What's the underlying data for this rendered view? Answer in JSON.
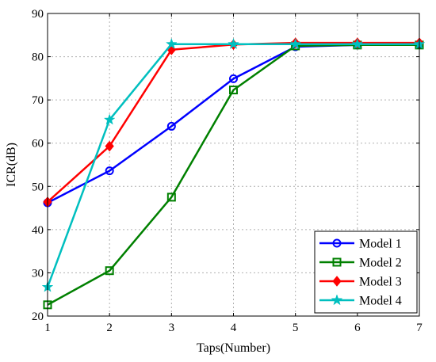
{
  "chart_data": {
    "type": "line",
    "xlabel": "Taps(Number)",
    "ylabel": "ICR(dB)",
    "x": [
      1,
      2,
      3,
      4,
      5,
      6,
      7
    ],
    "xlim": [
      1,
      7
    ],
    "ylim": [
      20,
      90
    ],
    "xticks": [
      "1",
      "2",
      "3",
      "4",
      "5",
      "6",
      "7"
    ],
    "yticks": [
      "20",
      "30",
      "40",
      "50",
      "60",
      "70",
      "80",
      "90"
    ],
    "grid": true,
    "legend_position": "bottom-right",
    "series": [
      {
        "name": "Model 1",
        "color": "#0000ff",
        "marker": "circle",
        "values": [
          46.2,
          53.6,
          63.9,
          74.9,
          82.3,
          82.7,
          82.8
        ]
      },
      {
        "name": "Model 2",
        "color": "#008000",
        "marker": "square",
        "values": [
          22.6,
          30.5,
          47.5,
          72.3,
          82.5,
          82.7,
          82.7
        ]
      },
      {
        "name": "Model 3",
        "color": "#ff0000",
        "marker": "diamond",
        "values": [
          46.4,
          59.3,
          81.6,
          82.8,
          83.2,
          83.2,
          83.2
        ]
      },
      {
        "name": "Model 4",
        "color": "#00bfbf",
        "marker": "star",
        "values": [
          26.7,
          65.4,
          82.9,
          82.9,
          82.9,
          82.9,
          82.9
        ]
      }
    ]
  }
}
